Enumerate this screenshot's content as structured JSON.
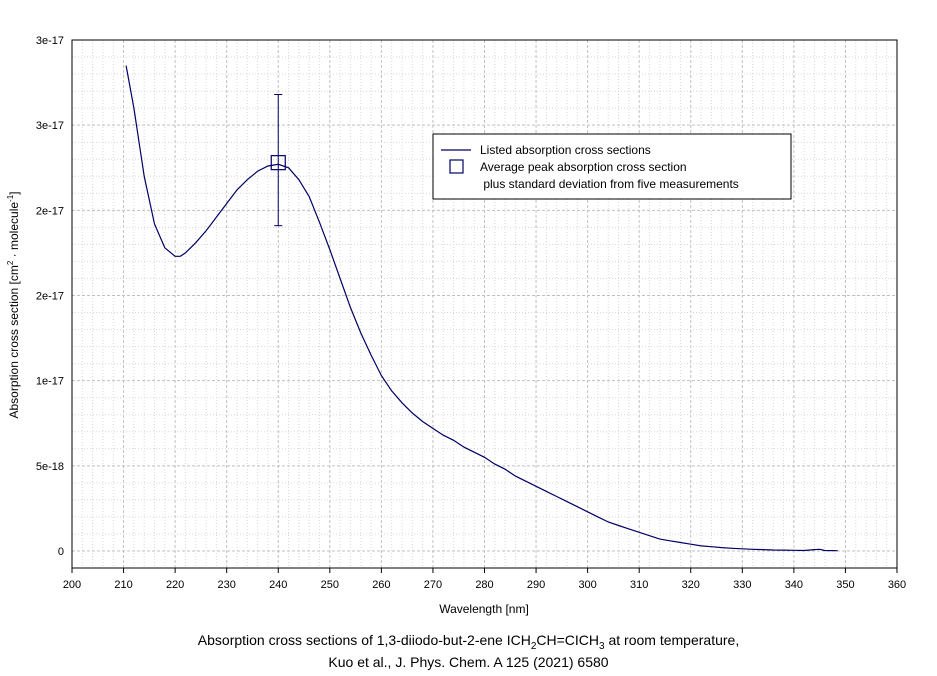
{
  "chart_data": {
    "type": "line",
    "xlabel": "Wavelength [nm]",
    "ylabel_main": "Absorption cross section [cm",
    "ylabel_sup1": "2",
    "ylabel_mid": " · molecule",
    "ylabel_sup2": "-1",
    "ylabel_end": "]",
    "xlim": [
      200,
      360
    ],
    "ylim": [
      -1e-18,
      3e-17
    ],
    "x_ticks": [
      200,
      210,
      220,
      230,
      240,
      250,
      260,
      270,
      280,
      290,
      300,
      310,
      320,
      330,
      340,
      350,
      360
    ],
    "y_ticks": [
      {
        "value": 0,
        "label": "0"
      },
      {
        "value": 5e-18,
        "label": "5e-18"
      },
      {
        "value": 1e-17,
        "label": "1e-17"
      },
      {
        "value": 1.5e-17,
        "label": "2e-17"
      },
      {
        "value": 2e-17,
        "label": "2e-17"
      },
      {
        "value": 2.5e-17,
        "label": "3e-17"
      },
      {
        "value": 3e-17,
        "label": "3e-17"
      }
    ],
    "grid": true,
    "series": [
      {
        "name": "Listed absorption cross sections",
        "color": "#000066",
        "x": [
          210.5,
          212,
          214,
          216,
          218,
          220,
          221,
          222,
          224,
          226,
          228,
          230,
          232,
          234,
          236,
          238,
          240,
          242,
          244,
          246,
          248,
          250,
          252,
          254,
          256,
          258,
          260,
          262,
          264,
          266,
          268,
          270,
          272,
          274,
          276,
          278,
          280,
          282,
          284,
          286,
          288,
          290,
          292,
          294,
          296,
          298,
          300,
          302,
          304,
          306,
          308,
          310,
          312,
          314,
          316,
          318,
          320,
          322,
          324,
          326,
          328,
          330,
          332,
          334,
          336,
          338,
          340,
          342,
          344,
          345,
          346,
          348.5
        ],
        "y": [
          2.85e-17,
          2.6e-17,
          2.2e-17,
          1.92e-17,
          1.78e-17,
          1.73e-17,
          1.73e-17,
          1.75e-17,
          1.81e-17,
          1.88e-17,
          1.96e-17,
          2.04e-17,
          2.12e-17,
          2.18e-17,
          2.23e-17,
          2.26e-17,
          2.27e-17,
          2.25e-17,
          2.18e-17,
          2.08e-17,
          1.93e-17,
          1.77e-17,
          1.6e-17,
          1.43e-17,
          1.28e-17,
          1.15e-17,
          1.03e-17,
          9.4e-18,
          8.7e-18,
          8.1e-18,
          7.6e-18,
          7.2e-18,
          6.8e-18,
          6.5e-18,
          6.1e-18,
          5.8e-18,
          5.5e-18,
          5.1e-18,
          4.8e-18,
          4.4e-18,
          4.1e-18,
          3.8e-18,
          3.5e-18,
          3.2e-18,
          2.9e-18,
          2.6e-18,
          2.3e-18,
          2e-18,
          1.7e-18,
          1.5e-18,
          1.3e-18,
          1.1e-18,
          9e-19,
          7e-19,
          6e-19,
          5e-19,
          4e-19,
          3e-19,
          2.5e-19,
          2e-19,
          1.6e-19,
          1.3e-19,
          1e-19,
          8e-20,
          6e-20,
          5e-20,
          4e-20,
          3e-20,
          8e-20,
          1e-19,
          3e-20,
          2e-20
        ]
      }
    ],
    "peak_point": {
      "name": "Average peak absorption cross section plus standard deviation from five measurements",
      "x": 240,
      "y": 2.28e-17,
      "y_upper": 2.68e-17,
      "y_lower": 1.91e-17,
      "color": "#000066"
    },
    "legend": {
      "placement": "upper-right",
      "line_label": "Listed absorption cross sections",
      "marker_label_1": "Average peak absorption cross section",
      "marker_label_2": " plus standard deviation from five measurements"
    }
  },
  "caption": {
    "line1_a": "Absorption cross sections of 1,3-diiodo-but-2-ene ICH",
    "line1_sub1": "2",
    "line1_b": "CH=CICH",
    "line1_sub2": "3",
    "line1_c": " at room temperature,",
    "line2": "Kuo et al., J. Phys. Chem. A 125 (2021) 6580"
  }
}
